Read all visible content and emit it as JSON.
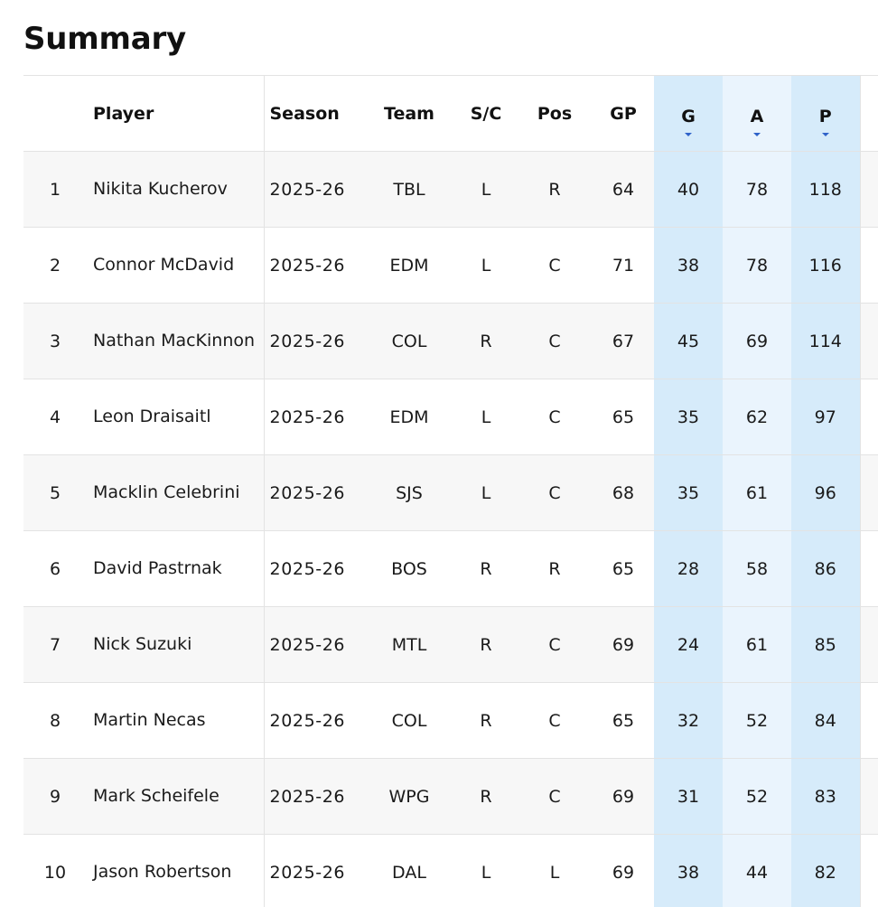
{
  "title": "Summary",
  "columns": {
    "player": "Player",
    "season": "Season",
    "team": "Team",
    "sc": "S/C",
    "pos": "Pos",
    "gp": "GP",
    "g": "G",
    "a": "A",
    "p": "P"
  },
  "sort_indicator_icon": "sort-descending-icon",
  "colors": {
    "highlight_strong": "#d6ebfa",
    "highlight_light": "#eaf4fd",
    "sort_arrow": "#2f62c9",
    "row_alt": "#f7f7f7"
  },
  "rows": [
    {
      "rank": "1",
      "player": "Nikita Kucherov",
      "season": "2025-26",
      "team": "TBL",
      "sc": "L",
      "pos": "R",
      "gp": "64",
      "g": "40",
      "a": "78",
      "p": "118"
    },
    {
      "rank": "2",
      "player": "Connor McDavid",
      "season": "2025-26",
      "team": "EDM",
      "sc": "L",
      "pos": "C",
      "gp": "71",
      "g": "38",
      "a": "78",
      "p": "116"
    },
    {
      "rank": "3",
      "player": "Nathan MacKinnon",
      "season": "2025-26",
      "team": "COL",
      "sc": "R",
      "pos": "C",
      "gp": "67",
      "g": "45",
      "a": "69",
      "p": "114"
    },
    {
      "rank": "4",
      "player": "Leon Draisaitl",
      "season": "2025-26",
      "team": "EDM",
      "sc": "L",
      "pos": "C",
      "gp": "65",
      "g": "35",
      "a": "62",
      "p": "97"
    },
    {
      "rank": "5",
      "player": "Macklin Celebrini",
      "season": "2025-26",
      "team": "SJS",
      "sc": "L",
      "pos": "C",
      "gp": "68",
      "g": "35",
      "a": "61",
      "p": "96"
    },
    {
      "rank": "6",
      "player": "David Pastrnak",
      "season": "2025-26",
      "team": "BOS",
      "sc": "R",
      "pos": "R",
      "gp": "65",
      "g": "28",
      "a": "58",
      "p": "86"
    },
    {
      "rank": "7",
      "player": "Nick Suzuki",
      "season": "2025-26",
      "team": "MTL",
      "sc": "R",
      "pos": "C",
      "gp": "69",
      "g": "24",
      "a": "61",
      "p": "85"
    },
    {
      "rank": "8",
      "player": "Martin Necas",
      "season": "2025-26",
      "team": "COL",
      "sc": "R",
      "pos": "C",
      "gp": "65",
      "g": "32",
      "a": "52",
      "p": "84"
    },
    {
      "rank": "9",
      "player": "Mark Scheifele",
      "season": "2025-26",
      "team": "WPG",
      "sc": "R",
      "pos": "C",
      "gp": "69",
      "g": "31",
      "a": "52",
      "p": "83"
    },
    {
      "rank": "10",
      "player": "Jason Robertson",
      "season": "2025-26",
      "team": "DAL",
      "sc": "L",
      "pos": "L",
      "gp": "69",
      "g": "38",
      "a": "44",
      "p": "82"
    }
  ]
}
